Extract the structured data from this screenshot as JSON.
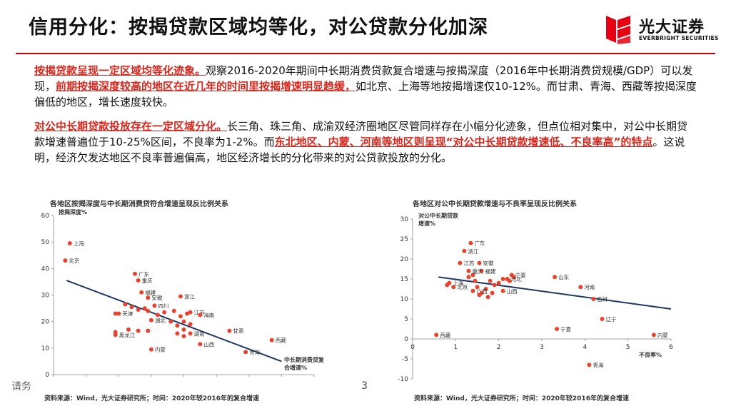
{
  "header": {
    "title": "信用分化：按揭贷款区域均等化，对公贷款分化加深",
    "logo_name": "光大证券",
    "logo_sub": "EVERBRIGHT SECURITIES",
    "accent_color": "#c00000"
  },
  "body": {
    "p1": {
      "hl1": "按揭贷款呈现一定区域均等化迹象。",
      "t1": "观察2016-2020年期间中长期消费贷款复合增速与按揭深度（2016年中长期消费贷规模/GDP）可以发现，",
      "hl2": "前期按揭深度较高的地区在近几年的时间里按揭增速明显趋缓，",
      "t2": "如北京、上海等地按揭增速仅10-12%。而甘肃、青海、西藏等按揭深度偏低的地区，增长速度较快。"
    },
    "p2": {
      "hl1": "对公中长期贷款投放存在一定区域分化。",
      "t1": "长三角、珠三角、成渝双经济圈地区尽管同样存在小幅分化迹象，但点位相对集中，对公中长期贷款增速普遍位于10-25%区间，不良率为1-2%。而",
      "hl2": "东北地区、内蒙、河南等地区则呈现“对公中长期贷款增速低、不良率高”的特点",
      "t2": "。这说明，经济欠发达地区不良率普遍偏高，地区经济增长的分化带来的对公贷款投放的分化。"
    }
  },
  "chart_data": [
    {
      "type": "scatter",
      "title": "各地区按揭深度与中长期消费贷符合增速呈现反比例关系",
      "xlabel": "中长期消费贷复合增速%",
      "ylabel": "按揭深度%",
      "xlim": [
        10,
        50
      ],
      "ylim": [
        0,
        60
      ],
      "xticks": [
        10,
        15,
        20,
        25,
        30,
        35,
        40,
        45,
        50
      ],
      "yticks": [
        0,
        10,
        20,
        30,
        40,
        50,
        60
      ],
      "marker_color": "#e8432e",
      "trend_color": "#1f3864",
      "trendline": [
        [
          12,
          35.5
        ],
        [
          45,
          5
        ]
      ],
      "labeled_points": [
        {
          "label": "上海",
          "x": 12.5,
          "y": 49.5
        },
        {
          "label": "北京",
          "x": 11.8,
          "y": 43
        },
        {
          "label": "广东",
          "x": 22.5,
          "y": 38
        },
        {
          "label": "重庆",
          "x": 23,
          "y": 35.5
        },
        {
          "label": "福建",
          "x": 23.5,
          "y": 31
        },
        {
          "label": "浙江",
          "x": 29.5,
          "y": 29.5
        },
        {
          "label": "安徽",
          "x": 24.5,
          "y": 29
        },
        {
          "label": "四川",
          "x": 25.5,
          "y": 26
        },
        {
          "label": "天津",
          "x": 20,
          "y": 23
        },
        {
          "label": "湖北",
          "x": 25,
          "y": 20.5
        },
        {
          "label": "江苏",
          "x": 31,
          "y": 23.5
        },
        {
          "label": "海南",
          "x": 32.5,
          "y": 22.5
        },
        {
          "label": "湖南",
          "x": 31,
          "y": 15.5
        },
        {
          "label": "甘肃",
          "x": 37,
          "y": 16.5
        },
        {
          "label": "黑龙江",
          "x": 19.5,
          "y": 15
        },
        {
          "label": "西藏",
          "x": 43.5,
          "y": 13
        },
        {
          "label": "山西",
          "x": 32.5,
          "y": 11.5
        },
        {
          "label": "内蒙",
          "x": 25,
          "y": 9.5
        },
        {
          "label": "青海",
          "x": 39.5,
          "y": 8.5
        }
      ],
      "unlabeled_points": [
        [
          19.5,
          23
        ],
        [
          21,
          26.5
        ],
        [
          22,
          25.5
        ],
        [
          23,
          24.5
        ],
        [
          24,
          25
        ],
        [
          24.5,
          24
        ],
        [
          26,
          22.5
        ],
        [
          27,
          23.5
        ],
        [
          28.5,
          24
        ],
        [
          29.5,
          22
        ],
        [
          30,
          20
        ],
        [
          30.5,
          23
        ],
        [
          28,
          20
        ],
        [
          29,
          18.5
        ],
        [
          30,
          17
        ],
        [
          31,
          19
        ],
        [
          21.5,
          17
        ],
        [
          23,
          16.5
        ],
        [
          24.5,
          16.5
        ],
        [
          19.5,
          16
        ],
        [
          29,
          15.5
        ],
        [
          30,
          14.5
        ]
      ],
      "source": "资料来源：Wind，光大证券研究所；时间：2020年较2016年的复合增速"
    },
    {
      "type": "scatter",
      "title": "各地区对公中长期贷款增速与不良率呈现反比例关系",
      "xlabel": "不良率%",
      "ylabel": "对公中长期贷款增速%",
      "xlim": [
        0,
        6
      ],
      "ylim": [
        -10,
        30
      ],
      "xticks": [
        0,
        1,
        2,
        3,
        4,
        5,
        6
      ],
      "yticks": [
        -10,
        -5,
        0,
        5,
        10,
        15,
        20,
        25,
        30
      ],
      "marker_color": "#e8432e",
      "trend_color": "#1f3864",
      "trendline": [
        [
          0.6,
          15.5
        ],
        [
          6,
          7.5
        ]
      ],
      "labeled_points": [
        {
          "label": "广东",
          "x": 1.35,
          "y": 24
        },
        {
          "label": "浙江",
          "x": 1.2,
          "y": 22
        },
        {
          "label": "江苏",
          "x": 1.1,
          "y": 19
        },
        {
          "label": "安徽",
          "x": 1.55,
          "y": 19
        },
        {
          "label": "福建",
          "x": 1.6,
          "y": 17
        },
        {
          "label": "重庆",
          "x": 1.3,
          "y": 17
        },
        {
          "label": "宁夏",
          "x": 2.3,
          "y": 16
        },
        {
          "label": "河北",
          "x": 2.2,
          "y": 15
        },
        {
          "label": "山东",
          "x": 3.3,
          "y": 15.5
        },
        {
          "label": "上海",
          "x": 0.85,
          "y": 14
        },
        {
          "label": "北京",
          "x": 0.95,
          "y": 13
        },
        {
          "label": "广西",
          "x": 1.4,
          "y": 12
        },
        {
          "label": "山西",
          "x": 2.1,
          "y": 12
        },
        {
          "label": "河南",
          "x": 3.9,
          "y": 13
        },
        {
          "label": "吉林",
          "x": 4.2,
          "y": 10
        },
        {
          "label": "辽宁",
          "x": 4.4,
          "y": 5
        },
        {
          "label": "宁夏",
          "x": 3.35,
          "y": 2.5
        },
        {
          "label": "内蒙",
          "x": 5.6,
          "y": 1
        },
        {
          "label": "西藏",
          "x": 0.55,
          "y": 1
        },
        {
          "label": "青海",
          "x": 4.1,
          "y": -6.5
        }
      ],
      "unlabeled_points": [
        [
          0.8,
          13.5
        ],
        [
          1.3,
          15.5
        ],
        [
          1.45,
          14.5
        ],
        [
          1.5,
          13
        ],
        [
          1.6,
          11.5
        ],
        [
          1.7,
          12.5
        ],
        [
          1.8,
          14.5
        ],
        [
          1.9,
          13.5
        ],
        [
          2.0,
          14
        ],
        [
          2.1,
          15
        ],
        [
          1.55,
          11
        ],
        [
          1.75,
          10.5
        ],
        [
          1.85,
          11.5
        ],
        [
          2.25,
          14.5
        ],
        [
          2.35,
          15.5
        ],
        [
          1.4,
          16
        ]
      ],
      "source": "资料来源：Wind，光大证券研究所；时间：2020年较2016年的复合增速"
    }
  ],
  "footer": {
    "left_text": "请务",
    "page_number": "3"
  }
}
